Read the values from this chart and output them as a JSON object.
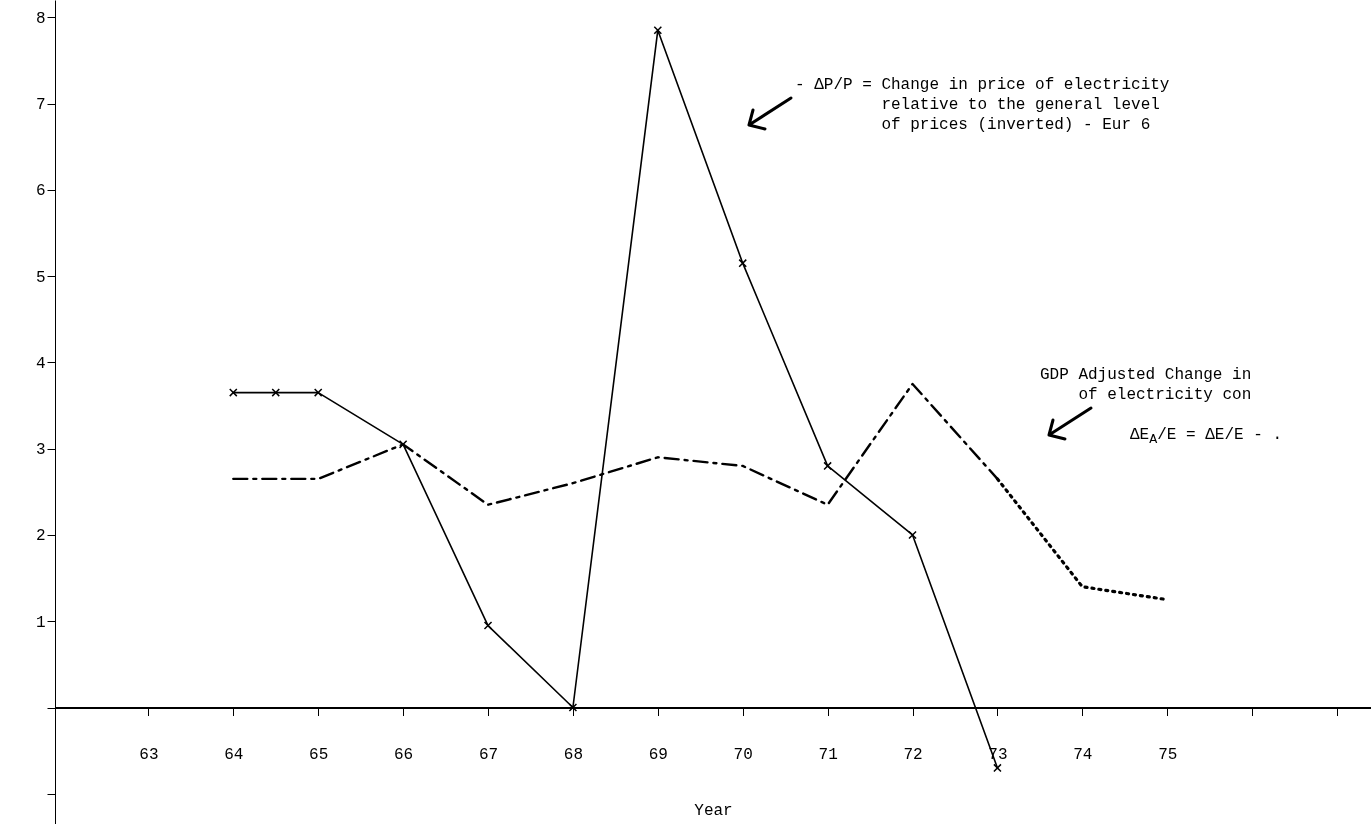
{
  "chart_data": {
    "type": "line",
    "xlabel": "Year",
    "xlim": [
      61.9,
      77.4
    ],
    "xticks": [
      63,
      64,
      65,
      66,
      67,
      68,
      69,
      70,
      71,
      72,
      73,
      74,
      75,
      {
        "value": 76,
        "label": null
      },
      {
        "value": 77,
        "label": null
      }
    ],
    "ylim": [
      -1.35,
      8.2
    ],
    "yticks": [
      {
        "value": -1,
        "label": null
      },
      {
        "value": 0,
        "label": null
      },
      1,
      2,
      3,
      4,
      5,
      6,
      7,
      8
    ],
    "grid": false,
    "series": [
      {
        "color": "#000000",
        "x": [
          64,
          64.5,
          65,
          66,
          67,
          68,
          69,
          70,
          71,
          72,
          73
        ],
        "values": [
          3.65,
          3.65,
          3.65,
          3.05,
          0.95,
          0,
          7.85,
          5.15,
          2.8,
          2.0,
          -0.7
        ],
        "marker": "cross",
        "line_style": "solid"
      },
      {
        "color": "#000000",
        "x": [
          64,
          65,
          66,
          67,
          68,
          69,
          70,
          71,
          72,
          73
        ],
        "values": [
          2.65,
          2.65,
          3.05,
          2.35,
          2.6,
          2.9,
          2.8,
          2.35,
          3.75,
          2.65
        ],
        "marker": "none",
        "line_style": "dashed"
      },
      {
        "color": "#000000",
        "x": [
          73,
          74,
          75
        ],
        "values": [
          2.65,
          1.4,
          1.25
        ],
        "marker": "none",
        "line_style": "dotted"
      }
    ],
    "annotations": [
      "- ΔP/P = Change in price of electricity\n         relative to the general level\n         of prices (inverted) - Eur 6",
      "GDP Adjusted Change in\n    of electricity con",
      "ΔE$_{A}$/E = ΔE/E - ."
    ]
  }
}
